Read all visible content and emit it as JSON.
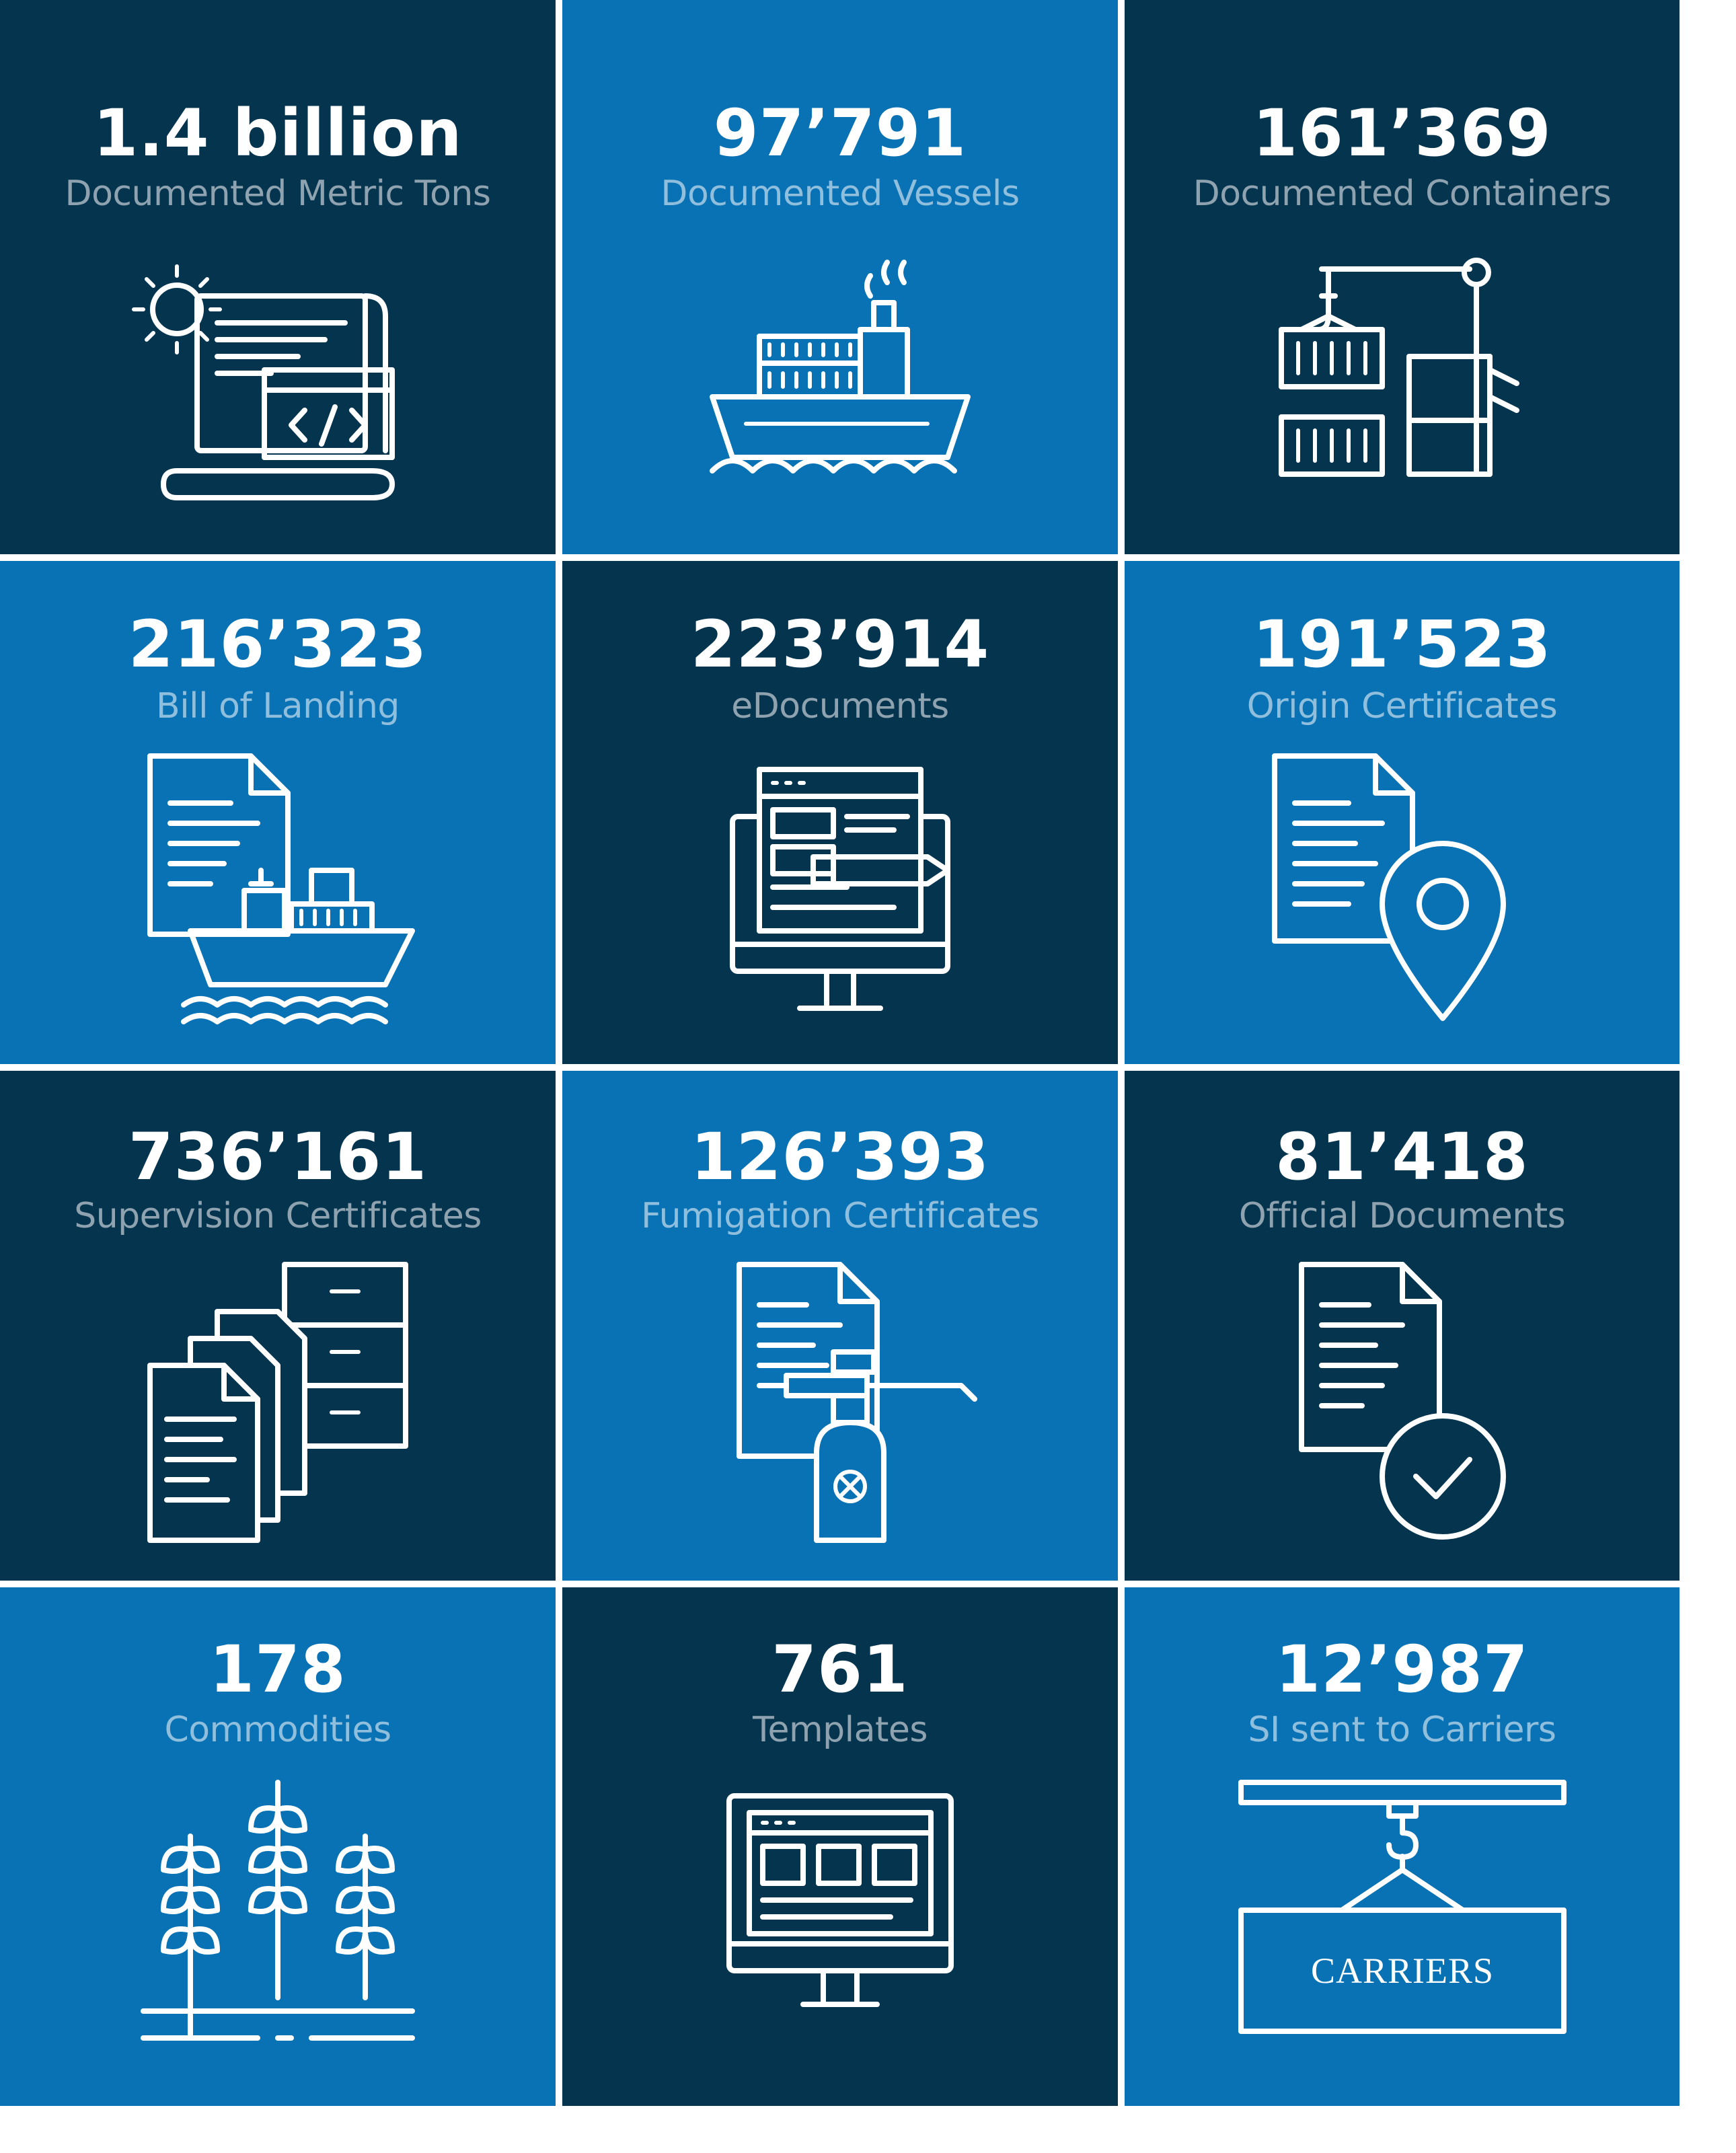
{
  "colors": {
    "dark": "#05344f",
    "blue": "#0872b4",
    "text": "#ffffff",
    "muted": "rgba(255,255,255,0.55)"
  },
  "tiles": [
    {
      "value": "1.4 billion",
      "label": "Documented Metric Tons",
      "icon": "code-document-gear-icon"
    },
    {
      "value": "97’791",
      "label": "Documented Vessels",
      "icon": "cargo-ship-icon"
    },
    {
      "value": "161’369",
      "label": "Documented Containers",
      "icon": "crane-containers-icon"
    },
    {
      "value": "216’323",
      "label": "Bill of Landing",
      "icon": "document-ship-icon"
    },
    {
      "value": "223’914",
      "label": "eDocuments",
      "icon": "monitor-edit-icon"
    },
    {
      "value": "191’523",
      "label": "Origin Certificates",
      "icon": "document-location-icon"
    },
    {
      "value": "736’161",
      "label": "Supervision Certificates",
      "icon": "documents-cabinet-icon"
    },
    {
      "value": "126’393",
      "label": "Fumigation Certificates",
      "icon": "document-sprayer-icon"
    },
    {
      "value": "81’418",
      "label": "Official Documents",
      "icon": "document-check-icon"
    },
    {
      "value": "178",
      "label": "Commodities",
      "icon": "wheat-icon"
    },
    {
      "value": "761",
      "label": "Templates",
      "icon": "monitor-template-icon"
    },
    {
      "value": "12’987",
      "label": "SI sent to Carriers",
      "icon": "carriers-sign-icon",
      "sign_text": "CARRIERS"
    }
  ]
}
